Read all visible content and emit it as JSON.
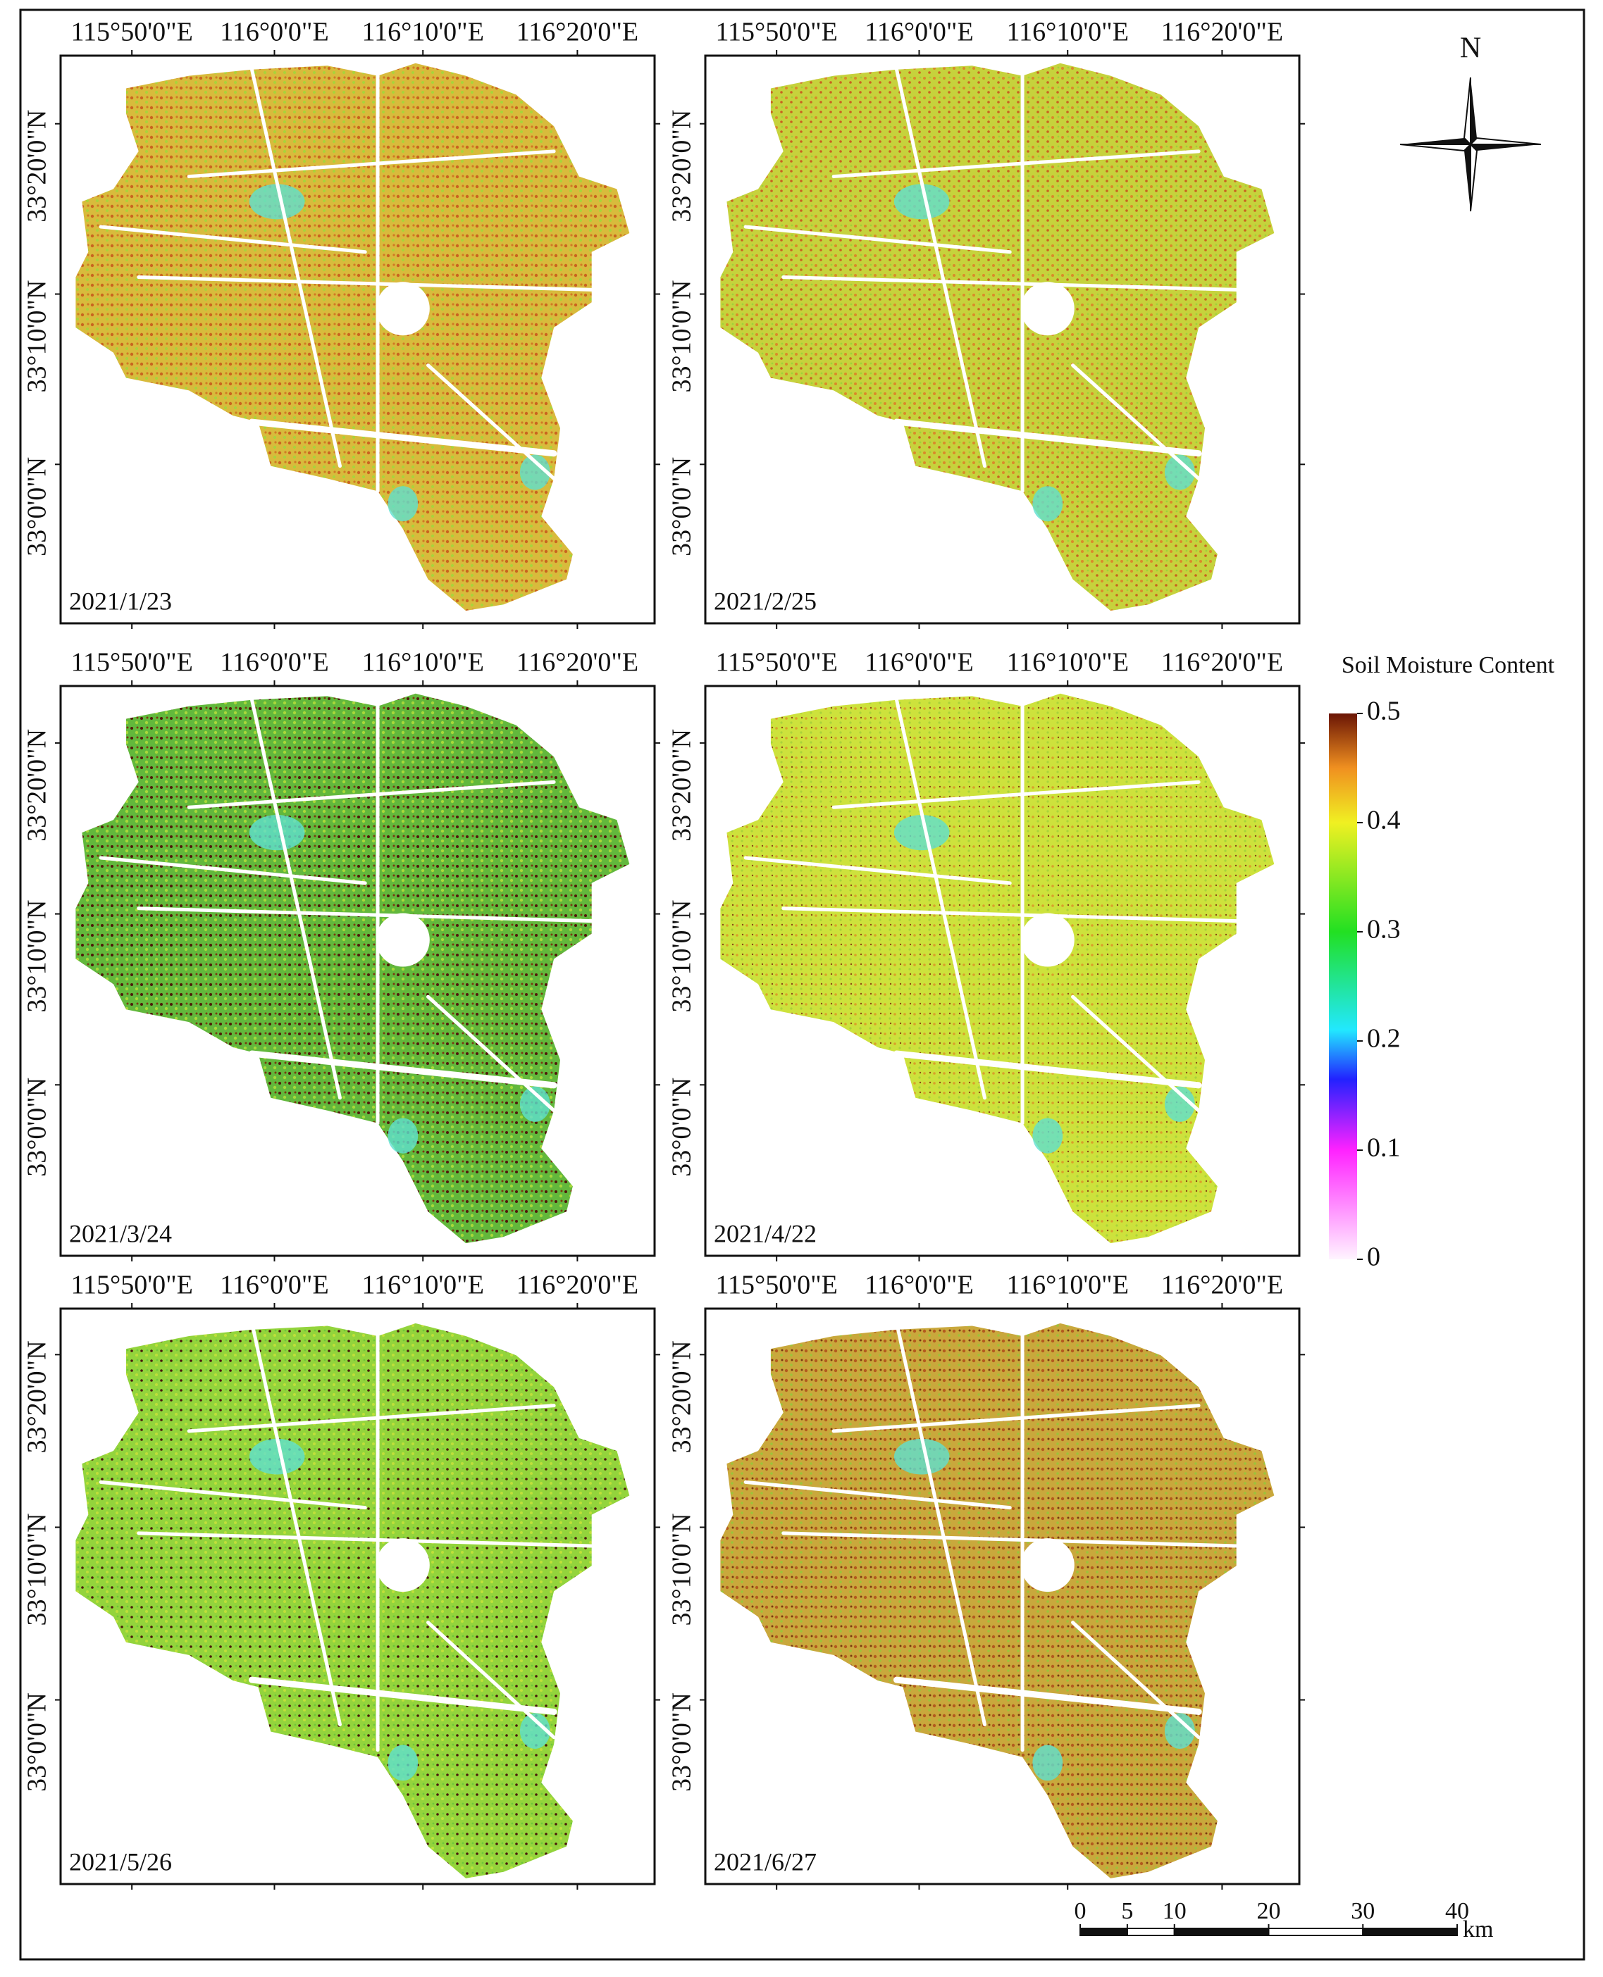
{
  "panels": [
    {
      "date": "2021/1/23",
      "lon_labels": [
        "115°50'0\"E",
        "116°0'0\"E",
        "116°10'0\"E",
        "116°20'0\"E"
      ],
      "lat_labels": [
        "33°20'0\"N",
        "33°10'0\"N",
        "33°0'0\"N"
      ]
    },
    {
      "date": "2021/2/25",
      "lon_labels": [
        "115°50'0\"E",
        "116°0'0\"E",
        "116°10'0\"E",
        "116°20'0\"E"
      ],
      "lat_labels": [
        "33°20'0\"N",
        "33°10'0\"N",
        "33°0'0\"N"
      ]
    },
    {
      "date": "2021/3/24",
      "lon_labels": [
        "115°50'0\"E",
        "116°0'0\"E",
        "116°10'0\"E",
        "116°20'0\"E"
      ],
      "lat_labels": [
        "33°20'0\"N",
        "33°10'0\"N",
        "33°0'0\"N"
      ]
    },
    {
      "date": "2021/4/22",
      "lon_labels": [
        "115°50'0\"E",
        "116°0'0\"E",
        "116°10'0\"E",
        "116°20'0\"E"
      ],
      "lat_labels": [
        "33°20'0\"N",
        "33°10'0\"N",
        "33°0'0\"N"
      ]
    },
    {
      "date": "2021/5/26",
      "lon_labels": [
        "115°50'0\"E",
        "116°0'0\"E",
        "116°10'0\"E",
        "116°20'0\"E"
      ],
      "lat_labels": [
        "33°20'0\"N",
        "33°10'0\"N",
        "33°0'0\"N"
      ]
    },
    {
      "date": "2021/6/27",
      "lon_labels": [
        "115°50'0\"E",
        "116°0'0\"E",
        "116°10'0\"E",
        "116°20'0\"E"
      ],
      "lat_labels": [
        "33°20'0\"N",
        "33°10'0\"N",
        "33°0'0\"N"
      ]
    }
  ],
  "legend": {
    "title": "Soil Moisture Content",
    "ticks": [
      0.5,
      0.4,
      0.3,
      0.2,
      0.1,
      0
    ]
  },
  "north_arrow": {
    "label": "N"
  },
  "scale_bar": {
    "ticks": [
      0,
      5,
      10,
      20,
      30,
      40
    ],
    "unit": "km"
  }
}
